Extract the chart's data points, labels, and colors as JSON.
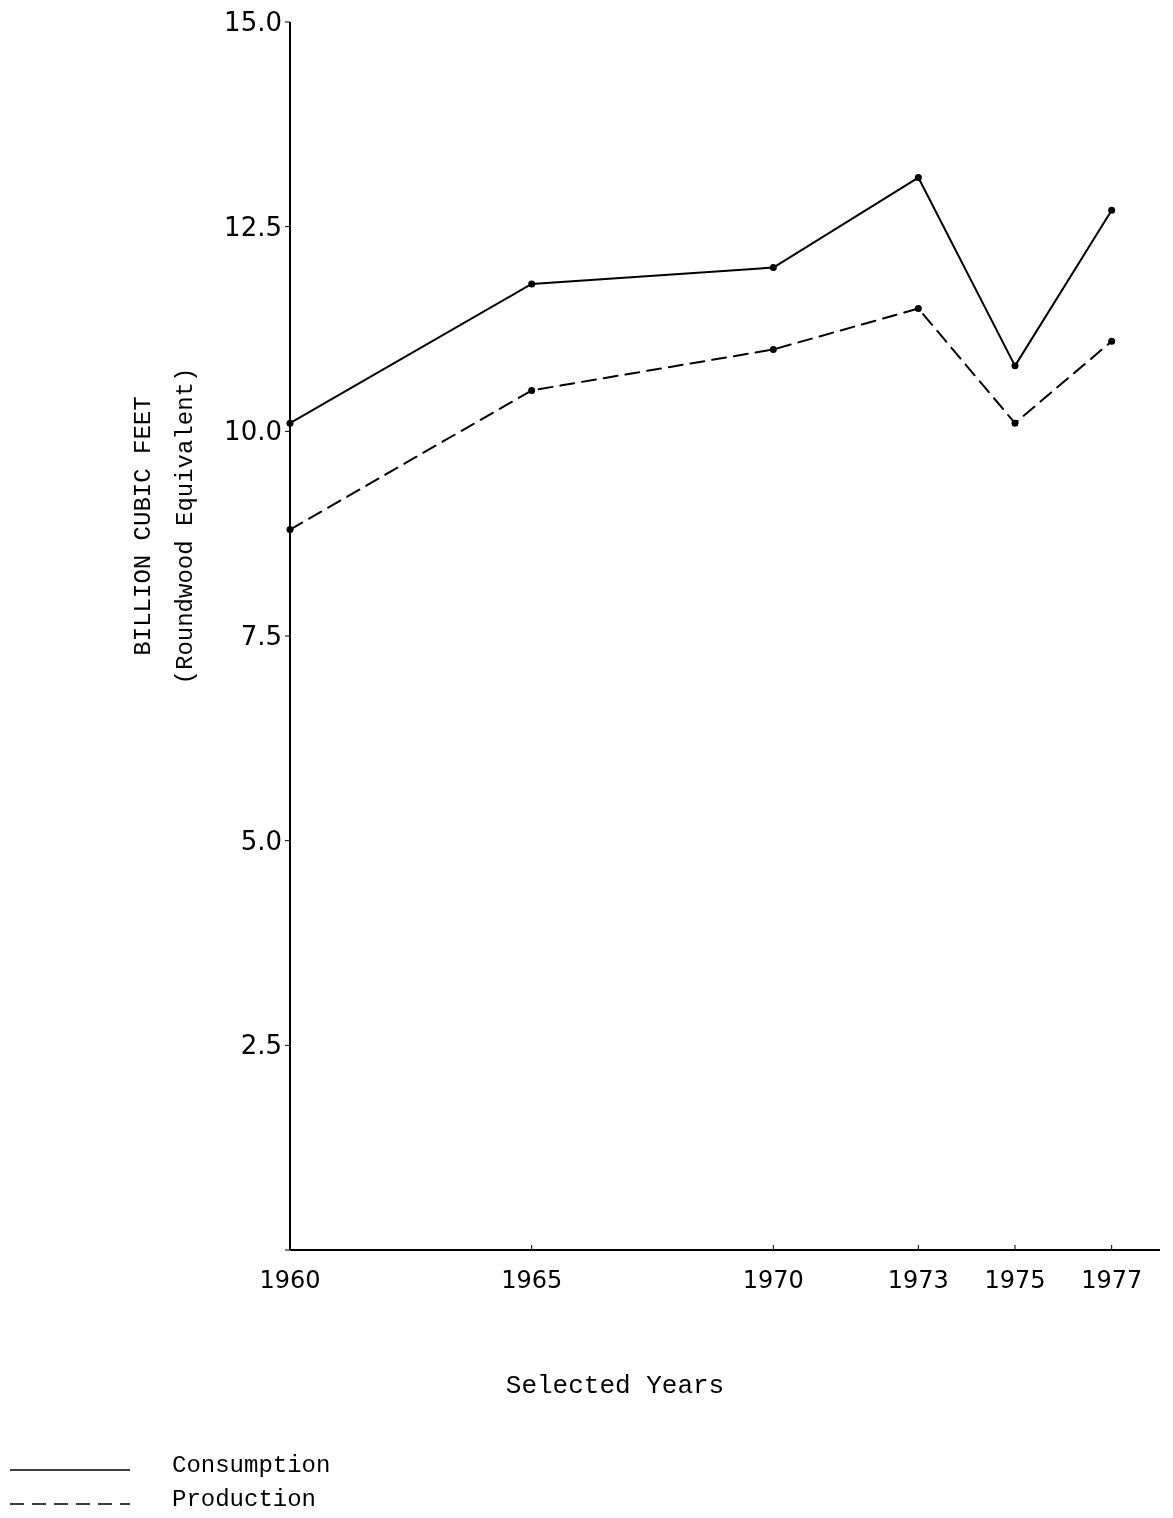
{
  "chart_data": {
    "type": "line",
    "xlabel": "Selected Years",
    "ylabel": "BILLION CUBIC FEET\n(Roundwood Equivalent)",
    "x": [
      1960,
      1965,
      1970,
      1973,
      1975,
      1977
    ],
    "xlim": [
      1960,
      1978
    ],
    "xticks": [
      1960,
      1965,
      1970,
      1973,
      1975,
      1977
    ],
    "ylim": [
      0,
      15
    ],
    "yticks": [
      {
        "value": 0,
        "label": null
      },
      {
        "value": 2.5,
        "label": "2.5"
      },
      {
        "value": 5,
        "label": "5.0"
      },
      {
        "value": 7.5,
        "label": "7.5"
      },
      {
        "value": 10,
        "label": "10.0"
      },
      {
        "value": 12.5,
        "label": "12.5"
      },
      {
        "value": 15,
        "label": "15.0"
      }
    ],
    "grid": false,
    "legend": "bottom left",
    "marker": "circle",
    "series": [
      {
        "name": "Consumption",
        "color": "#000000",
        "line_style": "solid",
        "values": [
          10.1,
          11.8,
          12.0,
          13.1,
          10.8,
          12.7
        ]
      },
      {
        "name": "Production",
        "color": "#000000",
        "line_style": "dashed",
        "values": [
          8.8,
          10.5,
          11.0,
          11.5,
          10.1,
          11.1
        ]
      }
    ]
  }
}
